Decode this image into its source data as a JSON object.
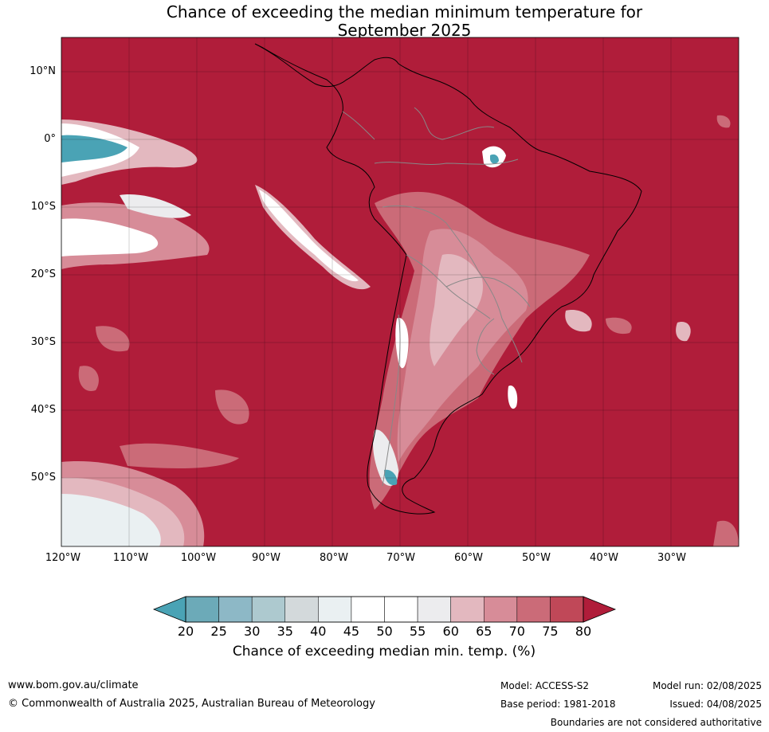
{
  "title_line1": "Chance of exceeding the median minimum temperature for",
  "title_line2": "September 2025",
  "lat_labels": [
    "10°N",
    "0°",
    "10°S",
    "20°S",
    "30°S",
    "40°S",
    "50°S"
  ],
  "lon_labels": [
    "120°W",
    "110°W",
    "100°W",
    "90°W",
    "80°W",
    "70°W",
    "60°W",
    "50°W",
    "40°W",
    "30°W"
  ],
  "colorbar": {
    "ticks": [
      "20",
      "25",
      "30",
      "35",
      "40",
      "45",
      "50",
      "55",
      "60",
      "65",
      "70",
      "75",
      "80"
    ],
    "colors": [
      "#4aa3b5",
      "#6caab8",
      "#8db8c6",
      "#adc9cf",
      "#d3d9db",
      "#eaf0f2",
      "#ffffff",
      "#ffffff",
      "#ececee",
      "#e3b8bf",
      "#d78c98",
      "#cb6b78",
      "#c04858",
      "#b01d3a"
    ],
    "label": "Chance of exceeding median min. temp. (%)"
  },
  "footer": {
    "website": "www.bom.gov.au/climate",
    "copyright": "© Commonwealth of Australia 2025, Australian Bureau of Meteorology",
    "model": "Model: ACCESS-S2",
    "base_period": "Base period: 1981-2018",
    "model_run": "Model run: 02/08/2025",
    "issued": "Issued: 04/08/2025",
    "disclaimer": "Boundaries are not considered authoritative"
  }
}
